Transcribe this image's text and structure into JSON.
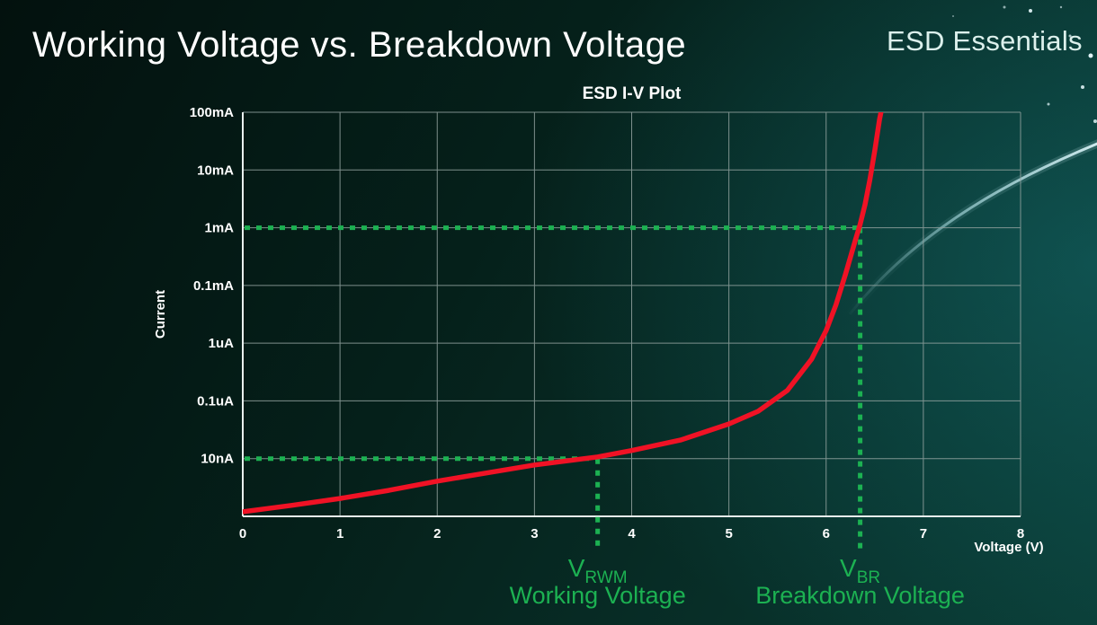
{
  "header": {
    "title": "Working Voltage vs. Breakdown Voltage",
    "brand": "ESD Essentials"
  },
  "chart_data": {
    "type": "line",
    "title": "ESD I-V Plot",
    "xlabel": "Voltage (V)",
    "ylabel": "Current",
    "x_range": [
      0,
      8
    ],
    "x_ticks": [
      0,
      1,
      2,
      3,
      4,
      5,
      6,
      7,
      8
    ],
    "y_axis": {
      "scale": "log-decades",
      "decades_total": 7,
      "tick_labels_top_to_bottom": [
        "100mA",
        "10mA",
        "1mA",
        "0.1mA",
        "1uA",
        "0.1uA",
        "10nA"
      ]
    },
    "grid": true,
    "legend": "none",
    "series": [
      {
        "name": "ESD device I-V curve",
        "color": "#f01225",
        "points_v_level": [
          [
            0,
            0.08
          ],
          [
            0.5,
            0.19
          ],
          [
            1,
            0.31
          ],
          [
            1.5,
            0.45
          ],
          [
            2,
            0.61
          ],
          [
            2.5,
            0.75
          ],
          [
            3,
            0.89
          ],
          [
            3.65,
            1.03
          ],
          [
            4,
            1.14
          ],
          [
            4.5,
            1.32
          ],
          [
            5,
            1.6
          ],
          [
            5.3,
            1.82
          ],
          [
            5.6,
            2.18
          ],
          [
            5.85,
            2.72
          ],
          [
            6,
            3.22
          ],
          [
            6.1,
            3.66
          ],
          [
            6.2,
            4.2
          ],
          [
            6.3,
            4.78
          ],
          [
            6.35,
            5.06
          ],
          [
            6.4,
            5.4
          ],
          [
            6.45,
            5.83
          ],
          [
            6.5,
            6.33
          ],
          [
            6.55,
            6.88
          ],
          [
            6.57,
            7.05
          ]
        ]
      }
    ],
    "annotations": {
      "working": {
        "symbol": "V",
        "subscript": "RWM",
        "label": "Working Voltage",
        "voltage": 3.65,
        "level": 1,
        "current": "10nA"
      },
      "breakdown": {
        "symbol": "V",
        "subscript": "BR",
        "label": "Breakdown Voltage",
        "voltage": 6.35,
        "level": 5,
        "current": "1mA"
      }
    },
    "colors": {
      "curve": "#f01225",
      "guides": "#1cb152",
      "grid": "#93a3a0",
      "axis": "#e9f0ee",
      "text": "#ffffff",
      "swoosh": "#bdeef4"
    }
  }
}
